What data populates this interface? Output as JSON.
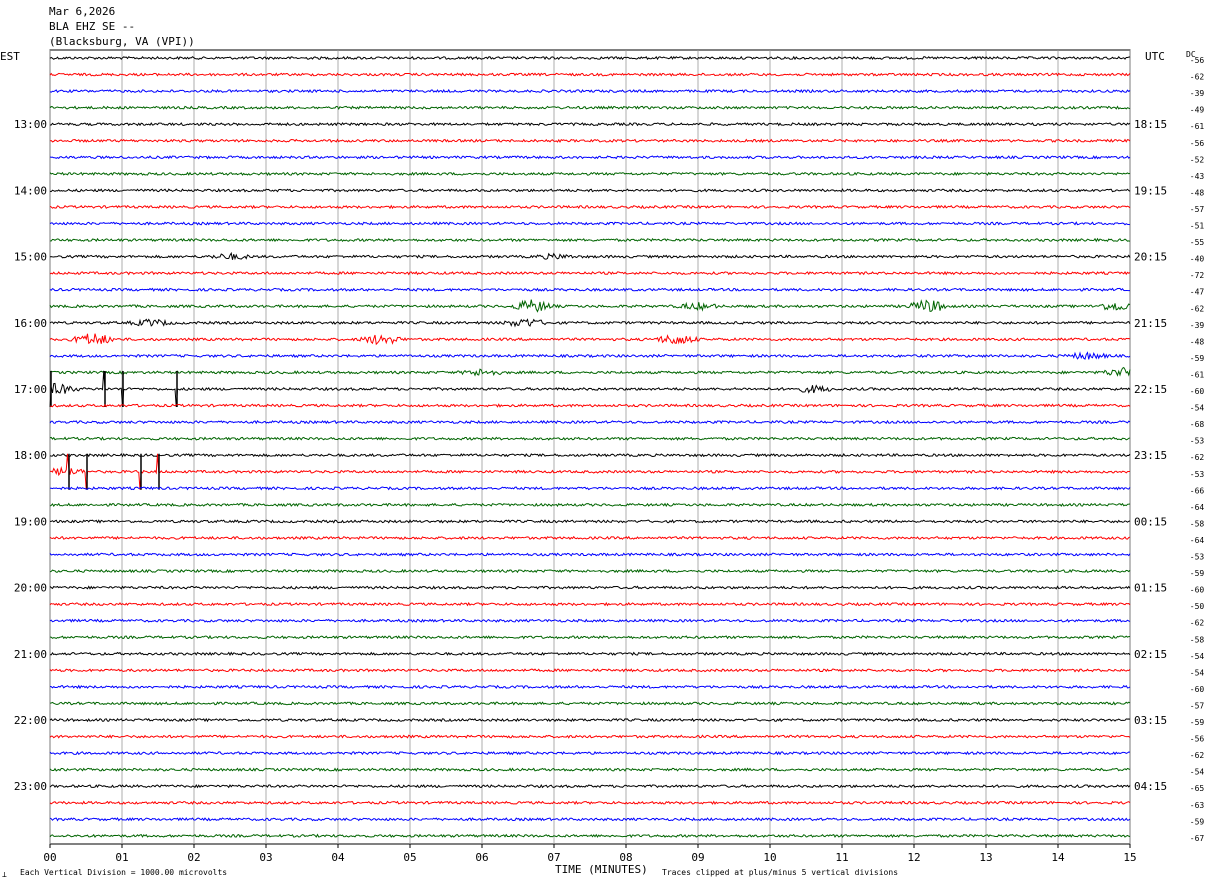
{
  "header": {
    "date": "Mar 6,2026",
    "station": "BLA EHZ SE --",
    "location": "(Blacksburg, VA (VPI))"
  },
  "left_zone_label": "EST",
  "right_zone_label": "UTC",
  "dc_label": "DC",
  "footer": {
    "scale_note": "Each Vertical Division = 1000.00 microvolts",
    "xlabel": "TIME (MINUTES)",
    "clip_note": "Traces clipped at plus/minus 5 vertical divisions",
    "corner_mark": "⟂"
  },
  "chart_data": {
    "type": "line",
    "xlabel": "TIME (MINUTES)",
    "xlim": [
      0,
      15
    ],
    "x_ticks": [
      "00",
      "01",
      "02",
      "03",
      "04",
      "05",
      "06",
      "07",
      "08",
      "09",
      "10",
      "11",
      "12",
      "13",
      "14",
      "15"
    ],
    "rows_per_hour": 4,
    "left_hour_labels": [
      "13:00",
      "14:00",
      "15:00",
      "16:00",
      "17:00",
      "18:00",
      "19:00",
      "20:00",
      "21:00",
      "22:00",
      "23:00"
    ],
    "right_hour_labels": [
      "18:15",
      "19:15",
      "20:15",
      "21:15",
      "22:15",
      "23:15",
      "00:15",
      "01:15",
      "02:15",
      "03:15",
      "04:15"
    ],
    "trace_colors": [
      "#000000",
      "#ff0000",
      "#0000ff",
      "#006400"
    ],
    "dc_offsets": [
      "-56",
      "-62",
      "-39",
      "-49",
      "-61",
      "-56",
      "-52",
      "-43",
      "-48",
      "-57",
      "-51",
      "-55",
      "-40",
      "-72",
      "-47",
      "-62",
      "-39",
      "-48",
      "-59",
      "-61",
      "-60",
      "-54",
      "-68",
      "-53",
      "-62",
      "-53",
      "-66",
      "-64",
      "-58",
      "-64",
      "-53",
      "-59",
      "-60",
      "-50",
      "-62",
      "-58",
      "-54",
      "-54",
      "-60",
      "-57",
      "-59",
      "-56",
      "-62",
      "-54",
      "-65",
      "-63",
      "-59",
      "-67"
    ],
    "events": [
      {
        "row": 12,
        "minute": 2.5,
        "amp": 2.5
      },
      {
        "row": 12,
        "minute": 7.0,
        "amp": 2.0
      },
      {
        "row": 15,
        "minute": 6.7,
        "amp": 6
      },
      {
        "row": 15,
        "minute": 9.0,
        "amp": 3
      },
      {
        "row": 15,
        "minute": 12.2,
        "amp": 6
      },
      {
        "row": 15,
        "minute": 14.8,
        "amp": 4
      },
      {
        "row": 16,
        "minute": 1.4,
        "amp": 3
      },
      {
        "row": 16,
        "minute": 6.6,
        "amp": 4
      },
      {
        "row": 17,
        "minute": 0.6,
        "amp": 6
      },
      {
        "row": 17,
        "minute": 4.6,
        "amp": 5
      },
      {
        "row": 17,
        "minute": 8.7,
        "amp": 5
      },
      {
        "row": 18,
        "minute": 14.4,
        "amp": 3
      },
      {
        "row": 19,
        "minute": 6.0,
        "amp": 3
      },
      {
        "row": 19,
        "minute": 14.9,
        "amp": 4
      },
      {
        "row": 20,
        "minute": 0.1,
        "amp": 5
      },
      {
        "row": 20,
        "minute": 10.6,
        "amp": 3
      },
      {
        "row": 25,
        "minute": 0.2,
        "amp": 4
      }
    ],
    "spikes": [
      {
        "row": 20,
        "minute": 0.0,
        "amp": 18
      },
      {
        "row": 20,
        "minute": 0.75,
        "amp": 18
      },
      {
        "row": 20,
        "minute": 1.0,
        "amp": 18
      },
      {
        "row": 20,
        "minute": 1.75,
        "amp": 18
      },
      {
        "row": 25,
        "minute": 0.25,
        "amp": 18
      },
      {
        "row": 25,
        "minute": 0.5,
        "amp": 18
      },
      {
        "row": 25,
        "minute": 1.25,
        "amp": 18
      },
      {
        "row": 25,
        "minute": 1.5,
        "amp": 18
      }
    ]
  }
}
